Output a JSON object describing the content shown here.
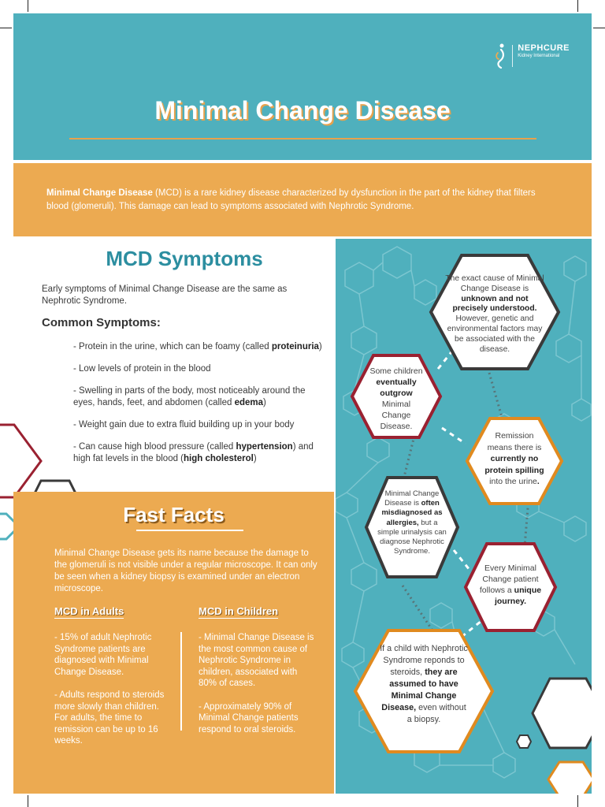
{
  "header": {
    "title": "Minimal Change Disease",
    "logo_name": "NEPHCURE",
    "logo_sub": "Kidney International"
  },
  "intro": {
    "bold_lead": "Minimal Change Disease",
    "text": " (MCD) is a rare kidney disease characterized by dysfunction in the part of the kidney that filters blood (glomeruli). This damage can lead to symptoms associated with Nephrotic Syndrome."
  },
  "symptoms": {
    "title": "MCD Symptoms",
    "lead": "Early symptoms of Minimal Change Disease are the same as Nephrotic Syndrome.",
    "common_heading": "Common Symptoms:",
    "items": [
      {
        "text": "- Protein in the urine, which can be foamy (called ",
        "bold": "proteinuria",
        "after": ")"
      },
      {
        "text": "- Low levels of protein in the blood",
        "bold": "",
        "after": ""
      },
      {
        "text": "- Swelling in parts of the body, most noticeably around the eyes, hands, feet, and abdomen (called ",
        "bold": "edema",
        "after": ")"
      },
      {
        "text": "- Weight gain due to extra fluid building up in your body",
        "bold": "",
        "after": ""
      },
      {
        "text": "- Can cause high blood pressure (called ",
        "bold": "hypertension",
        "after": ") and high fat levels in the blood (",
        "bold2": "high cholesterol",
        "after2": ")"
      }
    ]
  },
  "facts": {
    "title": "Fast Facts",
    "intro": "Minimal Change Disease gets its name because the damage to the glomeruli is not visible under a regular microscope. It can only be seen when a kidney biopsy is examined under an electron microscope.",
    "adults_heading": "MCD in Adults",
    "adults": [
      "- 15% of adult Nephrotic Syndrome patients are diagnosed with Minimal Change Disease.",
      "- Adults respond to steroids more slowly than children. For adults, the time to remission can be up to 16 weeks."
    ],
    "children_heading": "MCD in Children",
    "children": [
      "- Minimal Change Disease is the most common cause of Nephrotic Syndrome in children, associated with 80% of cases.",
      "- Approximately 90% of Minimal Change patients respond to oral steroids."
    ]
  },
  "hexagons": {
    "h1": {
      "a": "The exact cause of Minimal Change Disease is ",
      "b": "unknown and not precisely understood.",
      "c": " However, genetic and environmental factors may be associated with the disease."
    },
    "h2": {
      "a": "Some children ",
      "b": "eventually outgrow",
      "c": " Minimal Change Disease."
    },
    "h3": {
      "a": "Remission means there is ",
      "b": "currently no protein spilling",
      "c": " into the urine",
      "d": "."
    },
    "h4": {
      "a": "Minimal Change Disease is ",
      "b": "often misdiagnosed as allergies,",
      "c": " but a simple urinalysis can diagnose Nephrotic Syndrome."
    },
    "h5": {
      "a": "Every Minimal Change patient follows a ",
      "b": "unique journey."
    },
    "h6": {
      "a": "If a child with Nephrotic Syndrome reponds to steroids, ",
      "b": "they are assumed to have Minimal Change Disease,",
      "c": " even without a biopsy."
    }
  },
  "colors": {
    "teal": "#4fb0bd",
    "orange": "#ecaa51",
    "maroon": "#9a2131",
    "dark": "#3a3a3a"
  }
}
